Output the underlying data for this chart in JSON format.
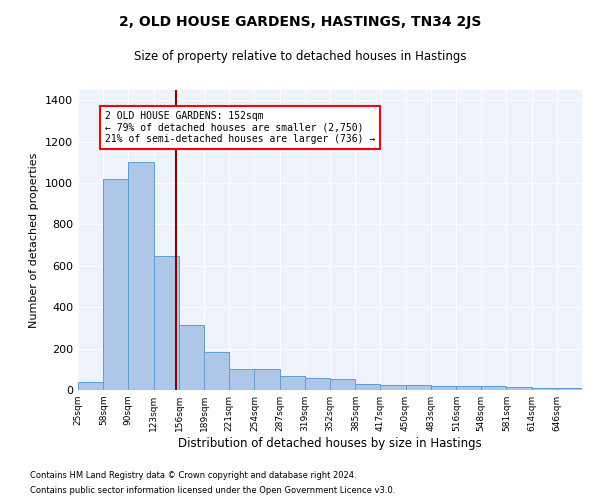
{
  "title": "2, OLD HOUSE GARDENS, HASTINGS, TN34 2JS",
  "subtitle": "Size of property relative to detached houses in Hastings",
  "xlabel": "Distribution of detached houses by size in Hastings",
  "ylabel": "Number of detached properties",
  "footnote1": "Contains HM Land Registry data © Crown copyright and database right 2024.",
  "footnote2": "Contains public sector information licensed under the Open Government Licence v3.0.",
  "annotation_line1": "2 OLD HOUSE GARDENS: 152sqm",
  "annotation_line2": "← 79% of detached houses are smaller (2,750)",
  "annotation_line3": "21% of semi-detached houses are larger (736) →",
  "property_size": 152,
  "bar_color": "#aec6e8",
  "bar_edge_color": "#5a9fd4",
  "vline_color": "#8b0000",
  "background_color": "#eef2fa",
  "bin_edges": [
    25,
    58,
    90,
    123,
    156,
    189,
    221,
    254,
    287,
    319,
    352,
    385,
    417,
    450,
    483,
    516,
    548,
    581,
    614,
    646,
    679
  ],
  "bar_heights": [
    40,
    1020,
    1100,
    650,
    315,
    185,
    100,
    100,
    70,
    60,
    55,
    30,
    25,
    25,
    20,
    20,
    20,
    15,
    10,
    10
  ],
  "ylim": [
    0,
    1450
  ],
  "yticks": [
    0,
    200,
    400,
    600,
    800,
    1000,
    1200,
    1400
  ]
}
